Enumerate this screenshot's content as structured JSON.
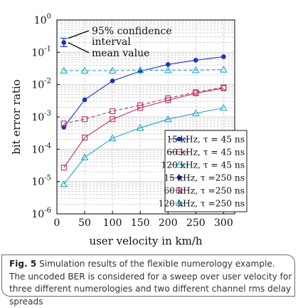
{
  "chart_data": {
    "type": "line",
    "xlabel": "user velocity in km/h",
    "ylabel": "bit error ratio",
    "xlim": [
      0,
      320
    ],
    "ylim": [
      1e-06,
      1
    ],
    "yscale": "log",
    "x_ticks": [
      "0",
      "50",
      "100",
      "150",
      "200",
      "250",
      "300"
    ],
    "y_ticks": [
      "10^{-6}",
      "10^{-5}",
      "10^{-4}",
      "10^{-3}",
      "10^{-2}",
      "10^{-1}",
      "10^{0}"
    ],
    "grid": true,
    "legend_position": "bottom-right",
    "x": [
      12.5,
      50,
      100,
      150,
      200,
      250,
      300
    ],
    "series": [
      {
        "name": "15 kHz, τ =  45 ns",
        "color": "#1c2fc4",
        "style": "solid",
        "marker": "circle",
        "values": [
          0.00048,
          0.0034,
          0.013,
          0.026,
          0.042,
          0.057,
          0.073
        ]
      },
      {
        "name": "60 kHz, τ =  45 ns",
        "color": "#b8336a",
        "style": "solid",
        "marker": "square",
        "values": [
          2.7e-05,
          0.00023,
          0.00085,
          0.0019,
          0.0033,
          0.0054,
          0.0078
        ]
      },
      {
        "name": "120 kHz, τ =  45 ns",
        "color": "#2aa6c8",
        "style": "solid",
        "marker": "triangle",
        "values": [
          8.3e-06,
          5.6e-05,
          0.00022,
          0.00046,
          0.00085,
          0.0013,
          0.0019
        ]
      },
      {
        "name": "15 kHz, τ =250 ns",
        "color": "#1c2fc4",
        "style": "dashed",
        "marker": "circle",
        "values": [
          0.2,
          null,
          null,
          null,
          null,
          null,
          null
        ],
        "error_bar": [
          0.15,
          0.27
        ]
      },
      {
        "name": "60 kHz, τ =250 ns",
        "color": "#b8336a",
        "style": "dashed",
        "marker": "square",
        "values": [
          0.00062,
          0.00085,
          0.0015,
          0.0023,
          0.0038,
          0.0058,
          0.0082
        ]
      },
      {
        "name": "120 kHz, τ =250 ns",
        "color": "#2aa6c8",
        "style": "dashed",
        "marker": "triangle",
        "values": [
          0.027,
          0.027,
          0.027,
          0.028,
          0.028,
          0.028,
          0.029
        ]
      }
    ],
    "annotations": [
      {
        "lines": [
          "95% confidence",
          "interval"
        ]
      },
      {
        "lines": [
          "mean value"
        ]
      }
    ]
  },
  "caption": {
    "label": "Fig. 5",
    "text": "Simulation results of the flexible numerology example. The uncoded BER is considered for a sweep over user velocity for three different numerologies and two different channel rms delay spreads"
  }
}
